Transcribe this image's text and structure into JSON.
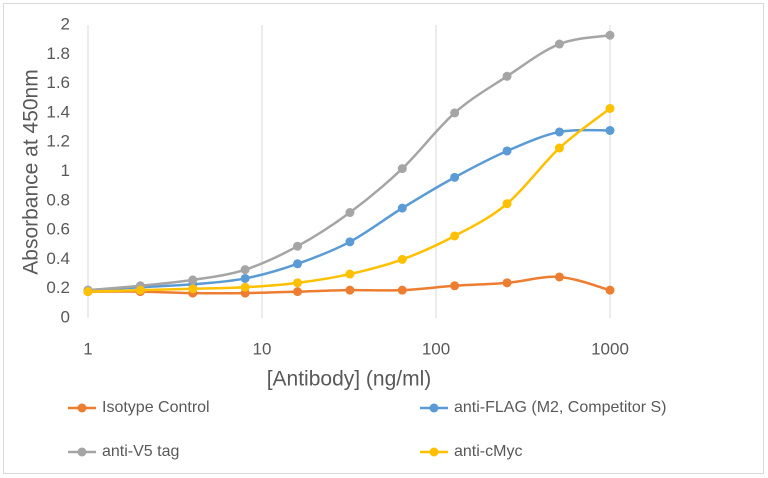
{
  "chart_data": {
    "type": "line",
    "x_label": "[Antibody]  (ng/ml)",
    "y_label": "Absorbance at 450nm",
    "x": [
      1,
      2,
      4,
      8,
      16,
      32,
      64,
      128,
      256,
      512,
      1000
    ],
    "series": [
      {
        "name": "Isotype Control",
        "color": "#ed7d31",
        "values": [
          0.18,
          0.18,
          0.17,
          0.17,
          0.18,
          0.19,
          0.19,
          0.22,
          0.24,
          0.28,
          0.19
        ]
      },
      {
        "name": "anti-FLAG (M2, Competitor S)",
        "color": "#5b9bd5",
        "values": [
          0.19,
          0.21,
          0.23,
          0.27,
          0.37,
          0.52,
          0.75,
          0.96,
          1.14,
          1.27,
          1.28
        ]
      },
      {
        "name": "anti-V5 tag",
        "color": "#a5a5a5",
        "values": [
          0.19,
          0.22,
          0.26,
          0.33,
          0.49,
          0.72,
          1.02,
          1.4,
          1.65,
          1.87,
          1.93
        ]
      },
      {
        "name": "anti-cMyc",
        "color": "#ffc000",
        "values": [
          0.18,
          0.19,
          0.2,
          0.21,
          0.24,
          0.3,
          0.4,
          0.56,
          0.78,
          1.16,
          1.43
        ]
      }
    ],
    "xlim": [
      1,
      1000
    ],
    "xticks": [
      1,
      10,
      100,
      1000
    ],
    "x_log": true,
    "ylim": [
      0,
      2
    ],
    "yticks": [
      0,
      0.2,
      0.4,
      0.6,
      0.8,
      1,
      1.2,
      1.4,
      1.6,
      1.8,
      2
    ],
    "grid": "x",
    "legend": "bottom"
  }
}
